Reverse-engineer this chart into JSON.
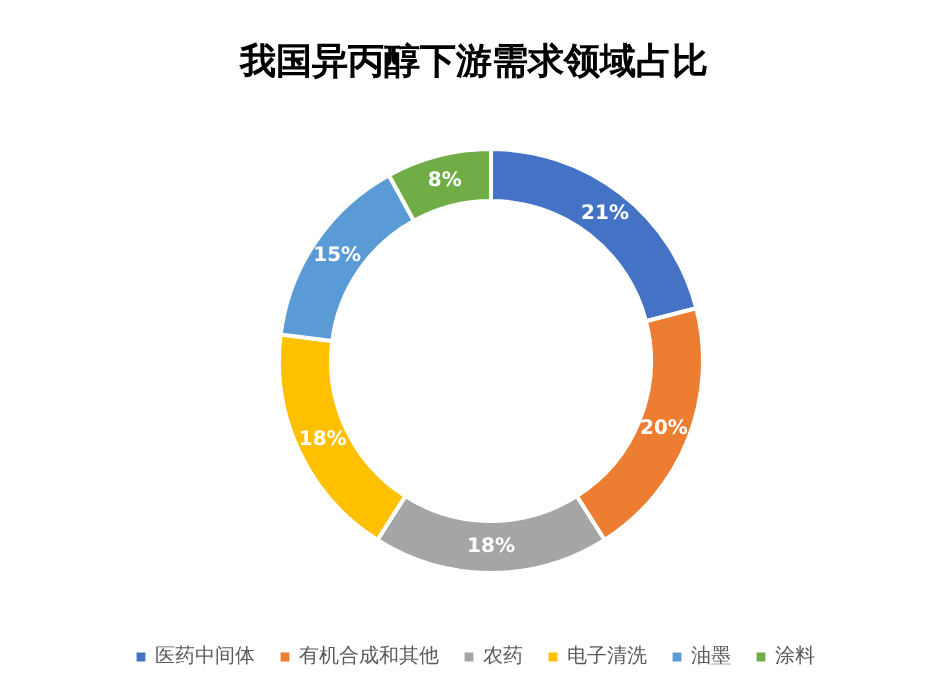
{
  "chart_data": {
    "type": "donut",
    "title": "我国异丙醇下游需求领域占比",
    "categories": [
      "医药中间体",
      "有机合成和其他",
      "农药",
      "电子清洗",
      "油墨",
      "涂料"
    ],
    "values": [
      21,
      20,
      18,
      18,
      15,
      8
    ],
    "colors": [
      "#4472c4",
      "#ed7d31",
      "#a5a5a5",
      "#ffc000",
      "#5b9bd5",
      "#70ad47"
    ],
    "value_labels": [
      "21%",
      "20%",
      "18%",
      "18%",
      "15%",
      "8%"
    ],
    "legend": "bottom"
  }
}
